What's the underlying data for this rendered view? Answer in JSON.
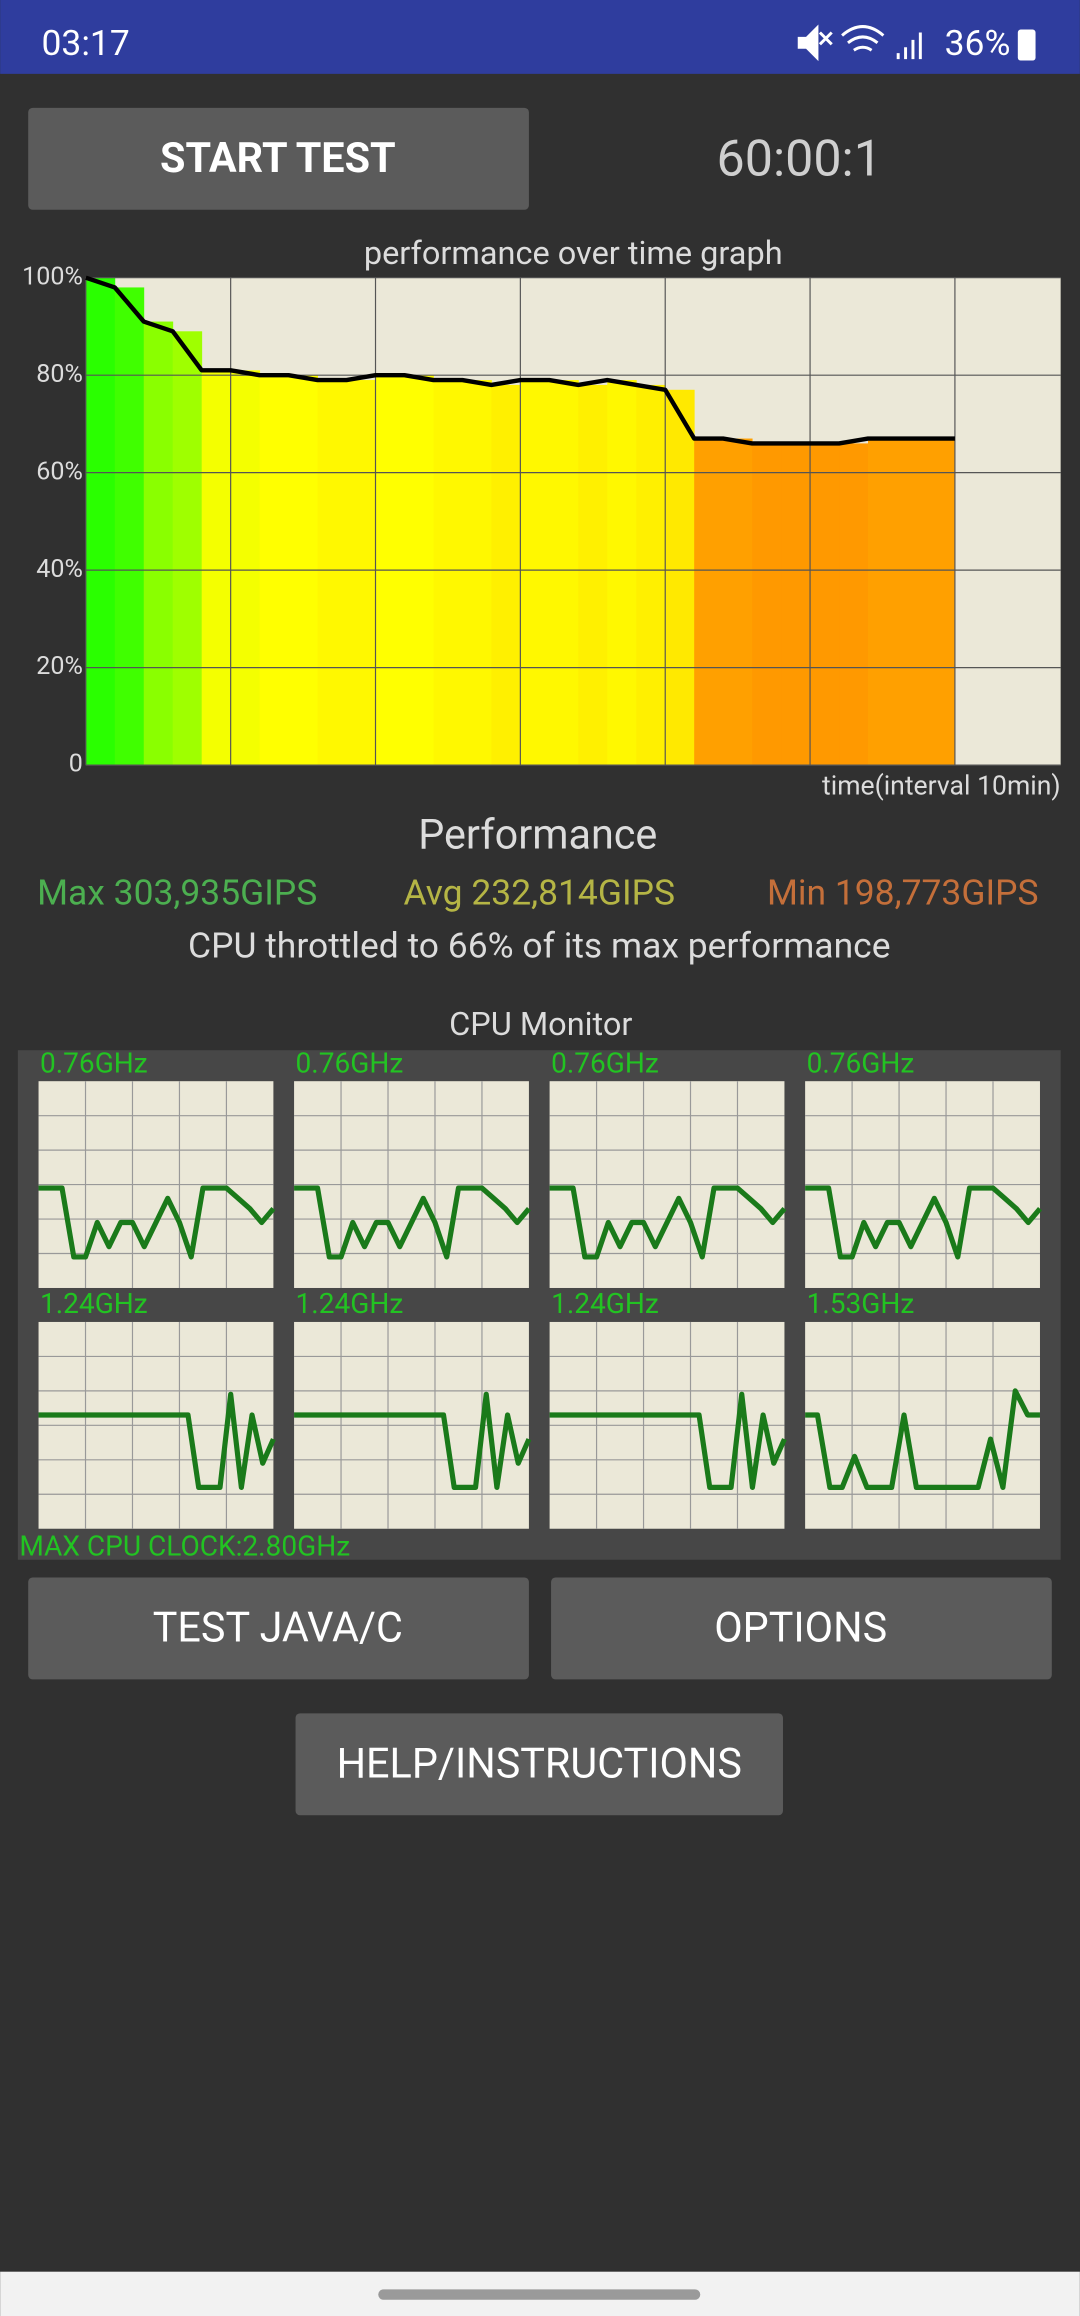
{
  "status_bar": {
    "time": "03:17",
    "battery": "36%"
  },
  "buttons": {
    "start_test": "START TEST",
    "test_java_c": "TEST JAVA/C",
    "options": "OPTIONS",
    "help": "HELP/INSTRUCTIONS"
  },
  "timer": "60:00:1",
  "chart_data": {
    "type": "line",
    "title": "performance over time graph",
    "x_label": "time(interval 10min)",
    "x": [
      0,
      2,
      4,
      6,
      8,
      10,
      12,
      14,
      16,
      18,
      20,
      22,
      24,
      26,
      28,
      30,
      32,
      34,
      36,
      38,
      40,
      42,
      44,
      46,
      48,
      50,
      52,
      54,
      56,
      58,
      60
    ],
    "series": [
      {
        "color": "#000000",
        "values": [
          100,
          98,
          91,
          89,
          81,
          81,
          80,
          80,
          79,
          79,
          80,
          80,
          79,
          79,
          78,
          79,
          79,
          78,
          79,
          78,
          77,
          67,
          67,
          66,
          66,
          66,
          66,
          67,
          67,
          67,
          67
        ]
      }
    ],
    "xlim": [
      0,
      67.3
    ],
    "xticks": [
      0,
      10,
      20,
      30,
      40,
      50,
      60
    ],
    "ylim": [
      0,
      100
    ],
    "yticks": [
      0,
      {
        "value": 20,
        "label": "20%"
      },
      {
        "value": 40,
        "label": "40%"
      },
      {
        "value": 60,
        "label": "60%"
      },
      {
        "value": 80,
        "label": "80%"
      },
      {
        "value": 100,
        "label": "100%"
      }
    ],
    "grid": true,
    "background": "#ebe8d8"
  },
  "performance": {
    "title": "Performance",
    "max": "Max 303,935GIPS",
    "avg": "Avg 232,814GIPS",
    "min": "Min 198,773GIPS",
    "summary": "CPU throttled to 66% of its max performance"
  },
  "cpu_monitor": {
    "title": "CPU Monitor",
    "ylim": [
      0,
      6
    ],
    "line_color": "#1a7a1a",
    "cores": [
      {
        "label": "0.76GHz",
        "values": [
          2.9,
          2.9,
          2.9,
          0.9,
          0.9,
          1.9,
          1.2,
          1.9,
          1.9,
          1.2,
          1.9,
          2.6,
          1.9,
          0.9,
          2.9,
          2.9,
          2.9,
          2.6,
          2.3,
          1.9,
          2.3
        ]
      },
      {
        "label": "0.76GHz",
        "values": [
          2.9,
          2.9,
          2.9,
          0.9,
          0.9,
          1.9,
          1.2,
          1.9,
          1.9,
          1.2,
          1.9,
          2.6,
          1.9,
          0.9,
          2.9,
          2.9,
          2.9,
          2.6,
          2.3,
          1.9,
          2.3
        ]
      },
      {
        "label": "0.76GHz",
        "values": [
          2.9,
          2.9,
          2.9,
          0.9,
          0.9,
          1.9,
          1.2,
          1.9,
          1.9,
          1.2,
          1.9,
          2.6,
          1.9,
          0.9,
          2.9,
          2.9,
          2.9,
          2.6,
          2.3,
          1.9,
          2.3
        ]
      },
      {
        "label": "0.76GHz",
        "values": [
          2.9,
          2.9,
          2.9,
          0.9,
          0.9,
          1.9,
          1.2,
          1.9,
          1.9,
          1.2,
          1.9,
          2.6,
          1.9,
          0.9,
          2.9,
          2.9,
          2.9,
          2.6,
          2.3,
          1.9,
          2.3
        ]
      },
      {
        "label": "1.24GHz",
        "values": [
          3.3,
          3.3,
          3.3,
          3.3,
          3.3,
          3.3,
          3.3,
          3.3,
          3.3,
          3.3,
          3.3,
          3.3,
          3.3,
          3.3,
          3.3,
          1.2,
          1.2,
          1.2,
          3.9,
          1.2,
          3.3,
          1.9,
          2.6
        ]
      },
      {
        "label": "1.24GHz",
        "values": [
          3.3,
          3.3,
          3.3,
          3.3,
          3.3,
          3.3,
          3.3,
          3.3,
          3.3,
          3.3,
          3.3,
          3.3,
          3.3,
          3.3,
          3.3,
          1.2,
          1.2,
          1.2,
          3.9,
          1.2,
          3.3,
          1.9,
          2.6
        ]
      },
      {
        "label": "1.24GHz",
        "values": [
          3.3,
          3.3,
          3.3,
          3.3,
          3.3,
          3.3,
          3.3,
          3.3,
          3.3,
          3.3,
          3.3,
          3.3,
          3.3,
          3.3,
          3.3,
          1.2,
          1.2,
          1.2,
          3.9,
          1.2,
          3.3,
          1.9,
          2.6
        ]
      },
      {
        "label": "1.53GHz",
        "values": [
          3.3,
          3.3,
          1.2,
          1.2,
          2.1,
          1.2,
          1.2,
          1.2,
          3.3,
          1.2,
          1.2,
          1.2,
          1.2,
          1.2,
          1.2,
          2.6,
          1.2,
          4.0,
          3.3,
          3.3
        ]
      }
    ],
    "max_clock": "MAX CPU CLOCK:2.80GHz"
  }
}
